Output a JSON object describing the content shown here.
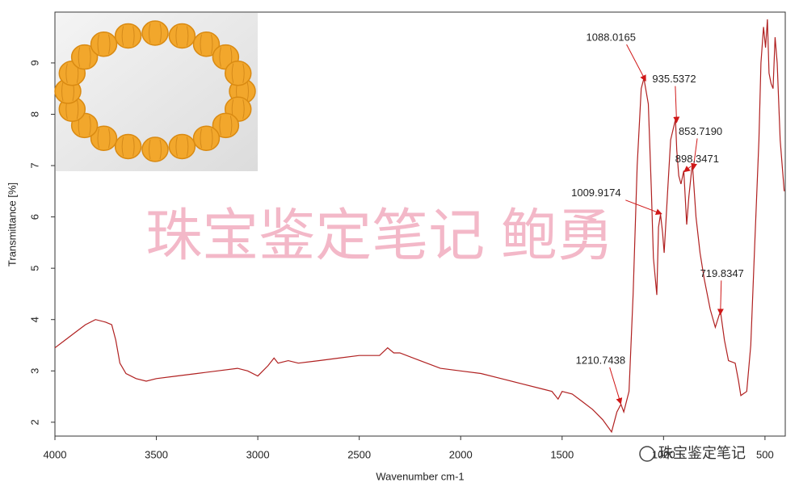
{
  "chart_data": {
    "type": "line",
    "xlabel": "Wavenumber cm-1",
    "ylabel": "Transmittance [%]",
    "watermark": "珠宝鉴定笔记  鲍勇",
    "logo": "珠宝鉴定笔记",
    "xlim": [
      4000,
      400
    ],
    "ylim": [
      1.73,
      9.99
    ],
    "xticks": [
      4000,
      3500,
      3000,
      2500,
      2000,
      1500,
      1000,
      500
    ],
    "yticks": [
      2,
      3,
      4,
      5,
      6,
      7,
      8,
      9
    ],
    "series": [
      {
        "name": "spectrum",
        "color": "#b02020",
        "x": [
          4000,
          3950,
          3900,
          3850,
          3800,
          3750,
          3720,
          3700,
          3680,
          3650,
          3600,
          3550,
          3500,
          3400,
          3300,
          3200,
          3100,
          3050,
          3000,
          2950,
          2920,
          2900,
          2850,
          2800,
          2700,
          2600,
          2500,
          2400,
          2360,
          2330,
          2300,
          2200,
          2100,
          2000,
          1900,
          1800,
          1700,
          1600,
          1550,
          1520,
          1500,
          1450,
          1400,
          1350,
          1300,
          1256,
          1230,
          1210,
          1196,
          1170,
          1150,
          1130,
          1110,
          1097,
          1075,
          1060,
          1050,
          1033,
          1025,
          1015,
          1005,
          997,
          980,
          965,
          941,
          935,
          925,
          914,
          900,
          886,
          875,
          858,
          840,
          820,
          800,
          770,
          745,
          725,
          719,
          700,
          680,
          647,
          630,
          619,
          590,
          570,
          550,
          530,
          520,
          507,
          497,
          488,
          480,
          470,
          460,
          450,
          440,
          425,
          405
        ],
        "values": [
          3.45,
          3.6,
          3.75,
          3.9,
          4.0,
          3.95,
          3.9,
          3.6,
          3.15,
          2.95,
          2.85,
          2.8,
          2.85,
          2.9,
          2.95,
          3.0,
          3.05,
          3.0,
          2.9,
          3.1,
          3.25,
          3.15,
          3.2,
          3.15,
          3.2,
          3.25,
          3.3,
          3.3,
          3.45,
          3.35,
          3.35,
          3.2,
          3.05,
          3.0,
          2.95,
          2.85,
          2.75,
          2.65,
          2.6,
          2.45,
          2.6,
          2.55,
          2.4,
          2.25,
          2.05,
          1.81,
          2.2,
          2.35,
          2.2,
          2.6,
          4.5,
          7.0,
          8.5,
          8.7,
          8.2,
          6.5,
          5.2,
          4.48,
          5.8,
          6.05,
          5.7,
          5.3,
          6.5,
          7.5,
          7.9,
          7.3,
          6.8,
          6.64,
          6.9,
          5.85,
          6.4,
          7.05,
          6.0,
          5.3,
          4.8,
          4.2,
          3.85,
          4.1,
          4.15,
          3.6,
          3.2,
          3.15,
          2.8,
          2.52,
          2.6,
          3.5,
          5.5,
          7.5,
          9.0,
          9.7,
          9.3,
          9.85,
          8.8,
          8.6,
          8.5,
          9.5,
          9.0,
          7.5,
          6.5
        ]
      }
    ],
    "annotations": [
      {
        "label": "1088.0165",
        "x": 1088.0165,
        "y": 8.65
      },
      {
        "label": "935.5372",
        "x": 935.5372,
        "y": 7.84
      },
      {
        "label": "853.7190",
        "x": 853.719,
        "y": 6.93
      },
      {
        "label": "898.3471",
        "x": 898.3471,
        "y": 6.88
      },
      {
        "label": "1009.9174",
        "x": 1009.9174,
        "y": 6.06
      },
      {
        "label": "719.8347",
        "x": 719.8347,
        "y": 4.1
      },
      {
        "label": "1210.7438",
        "x": 1210.7438,
        "y": 2.36
      }
    ]
  }
}
